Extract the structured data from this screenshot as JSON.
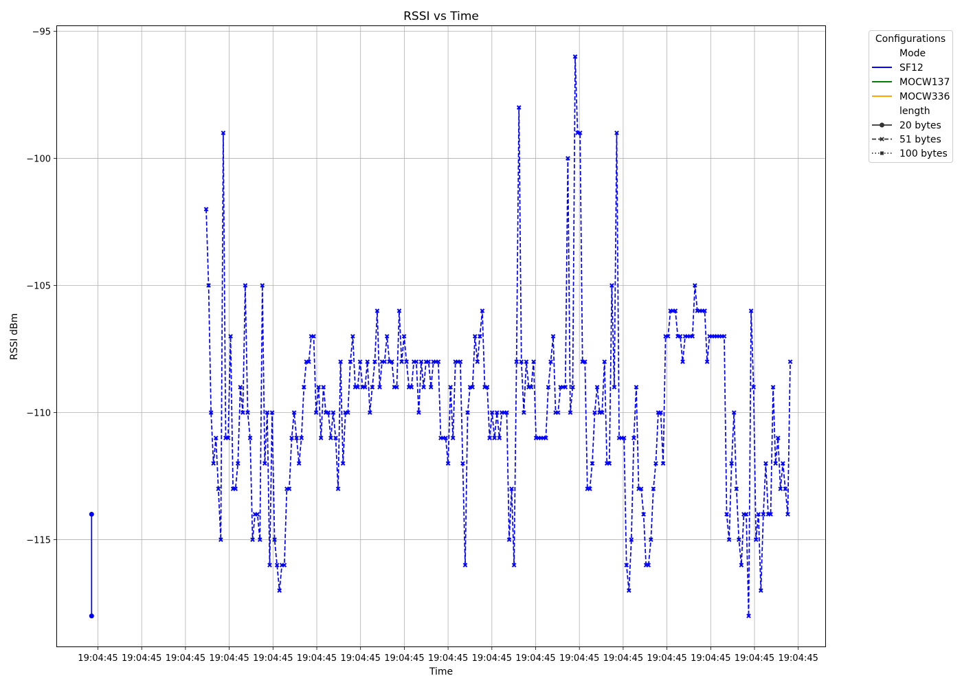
{
  "chart_data": {
    "type": "line",
    "title": "RSSI vs Time",
    "xlabel": "Time",
    "ylabel": "RSSI dBm",
    "ylim": [
      -119.2,
      -94.8
    ],
    "yticks": [
      -95,
      -100,
      -105,
      -110,
      -115
    ],
    "xtick_labels": [
      "19:04:45",
      "19:04:45",
      "19:04:45",
      "19:04:45",
      "19:04:45",
      "19:04:45",
      "19:04:45",
      "19:04:45",
      "19:04:45",
      "19:04:45",
      "19:04:45",
      "19:04:45",
      "19:04:45",
      "19:04:45",
      "19:04:45",
      "19:04:45",
      "19:04:45"
    ],
    "grid": true,
    "legend": {
      "title": "Configurations",
      "placement": "outside top-right",
      "mode_header": "Mode",
      "length_header": "length",
      "modes": [
        {
          "label": "SF12",
          "color": "#0000ff"
        },
        {
          "label": "MOCW137",
          "color": "#008000"
        },
        {
          "label": "MOCW336",
          "color": "#ffa500"
        }
      ],
      "lengths": [
        {
          "label": "20 bytes",
          "style": "solid",
          "marker": "circle"
        },
        {
          "label": "51 bytes",
          "style": "dashed",
          "marker": "x"
        },
        {
          "label": "100 bytes",
          "style": "dotted",
          "marker": "square"
        }
      ]
    },
    "series": [
      {
        "mode": "SF12",
        "length": "20 bytes",
        "color": "#0000ff",
        "style": "solid",
        "marker": "circle",
        "values": [
          -114,
          -118
        ]
      },
      {
        "mode": "SF12",
        "length": "51 bytes",
        "color": "#0000ff",
        "style": "dashed",
        "marker": "x",
        "values": [
          -102,
          -105,
          -110,
          -112,
          -111,
          -113,
          -115,
          -99,
          -111,
          -111,
          -107,
          -113,
          -113,
          -112,
          -109,
          -110,
          -105,
          -110,
          -111,
          -115,
          -114,
          -114,
          -115,
          -105,
          -112,
          -110,
          -116,
          -110,
          -115,
          -116,
          -117,
          -116,
          -116,
          -113,
          -113,
          -111,
          -110,
          -111,
          -112,
          -111,
          -109,
          -108,
          -108,
          -107,
          -107,
          -110,
          -109,
          -111,
          -109,
          -110,
          -110,
          -111,
          -110,
          -111,
          -113,
          -108,
          -112,
          -110,
          -110,
          -108,
          -107,
          -109,
          -109,
          -108,
          -109,
          -109,
          -108,
          -110,
          -109,
          -108,
          -106,
          -109,
          -108,
          -108,
          -107,
          -108,
          -108,
          -109,
          -109,
          -106,
          -108,
          -107,
          -108,
          -109,
          -109,
          -108,
          -108,
          -110,
          -108,
          -109,
          -108,
          -108,
          -109,
          -108,
          -108,
          -108,
          -111,
          -111,
          -111,
          -112,
          -109,
          -111,
          -108,
          -108,
          -108,
          -112,
          -116,
          -110,
          -109,
          -109,
          -107,
          -108,
          -107,
          -106,
          -109,
          -109,
          -111,
          -110,
          -111,
          -110,
          -111,
          -110,
          -110,
          -110,
          -115,
          -113,
          -116,
          -108,
          -98,
          -108,
          -110,
          -108,
          -109,
          -109,
          -108,
          -111,
          -111,
          -111,
          -111,
          -111,
          -109,
          -108,
          -107,
          -110,
          -110,
          -109,
          -109,
          -109,
          -100,
          -110,
          -109,
          -96,
          -99,
          -99,
          -108,
          -108,
          -113,
          -113,
          -112,
          -110,
          -109,
          -110,
          -110,
          -108,
          -112,
          -112,
          -105,
          -109,
          -99,
          -111,
          -111,
          -111,
          -116,
          -117,
          -115,
          -111,
          -109,
          -113,
          -113,
          -114,
          -116,
          -116,
          -115,
          -113,
          -112,
          -110,
          -110,
          -112,
          -107,
          -107,
          -106,
          -106,
          -106,
          -107,
          -107,
          -108,
          -107,
          -107,
          -107,
          -107,
          -105,
          -106,
          -106,
          -106,
          -106,
          -108,
          -107,
          -107,
          -107,
          -107,
          -107,
          -107,
          -107,
          -114,
          -115,
          -112,
          -110,
          -113,
          -115,
          -116,
          -114,
          -114,
          -118,
          -106,
          -109,
          -115,
          -114,
          -117,
          -114,
          -112,
          -114,
          -114,
          -109,
          -112,
          -111,
          -113,
          -112,
          -113,
          -114,
          -108
        ]
      }
    ]
  }
}
